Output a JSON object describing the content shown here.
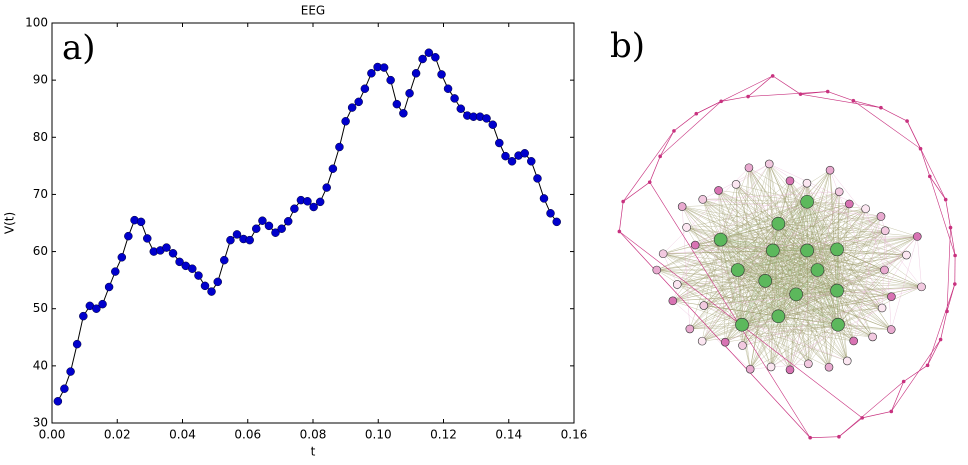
{
  "chart_data": {
    "type": "line",
    "title": "EEG",
    "xlabel": "t",
    "ylabel": "V(t)",
    "panel_labels": [
      "a)",
      "b)"
    ],
    "xlim": [
      0,
      0.16
    ],
    "ylim": [
      30,
      100
    ],
    "xticks": [
      {
        "value": 0,
        "label": "0.00"
      },
      {
        "value": 0.02,
        "label": "0.02"
      },
      {
        "value": 0.04,
        "label": "0.04"
      },
      {
        "value": 0.06,
        "label": "0.06"
      },
      {
        "value": 0.08,
        "label": "0.08"
      },
      {
        "value": 0.1,
        "label": "0.10"
      },
      {
        "value": 0.12,
        "label": "0.12"
      },
      {
        "value": 0.14,
        "label": "0.14"
      },
      {
        "value": 0.16,
        "label": "0.16"
      }
    ],
    "yticks": [
      30,
      40,
      50,
      60,
      70,
      80,
      90,
      100
    ],
    "x": [
      0.0018,
      0.0038,
      0.0057,
      0.0077,
      0.0096,
      0.0116,
      0.0136,
      0.0155,
      0.0175,
      0.0194,
      0.0214,
      0.0234,
      0.0253,
      0.0273,
      0.0292,
      0.0312,
      0.0332,
      0.0351,
      0.0371,
      0.0391,
      0.041,
      0.043,
      0.0449,
      0.0469,
      0.0489,
      0.0508,
      0.0528,
      0.0547,
      0.0567,
      0.0587,
      0.0606,
      0.0626,
      0.0645,
      0.0665,
      0.0685,
      0.0704,
      0.0724,
      0.0743,
      0.0763,
      0.0783,
      0.0802,
      0.0822,
      0.0842,
      0.0861,
      0.0881,
      0.09,
      0.092,
      0.094,
      0.0959,
      0.0979,
      0.0998,
      0.1018,
      0.1038,
      0.1057,
      0.1077,
      0.1096,
      0.1116,
      0.1136,
      0.1155,
      0.1175,
      0.1194,
      0.1214,
      0.1234,
      0.1253,
      0.1273,
      0.1292,
      0.1312,
      0.1332,
      0.1351,
      0.1371,
      0.139,
      0.141,
      0.143,
      0.1449,
      0.1469,
      0.1488,
      0.1508,
      0.1528,
      0.1547
    ],
    "series": [
      {
        "name": "V(t)",
        "color": "#0000cc",
        "values": [
          33.8,
          36,
          39,
          43.8,
          48.7,
          50.5,
          50,
          50.8,
          53.8,
          56.5,
          59,
          62.7,
          65.5,
          65.2,
          62.3,
          60,
          60.2,
          60.7,
          59.7,
          58.2,
          57.5,
          57,
          55.8,
          54,
          53,
          54.7,
          58.5,
          62,
          63,
          62.2,
          62,
          64,
          65.4,
          64.5,
          63.3,
          64,
          65.3,
          67.5,
          69,
          68.8,
          67.8,
          68.7,
          71.2,
          74.5,
          78.3,
          82.8,
          85.2,
          86.2,
          88.5,
          91.2,
          92.3,
          92.2,
          90,
          85.8,
          84.2,
          87.7,
          91.2,
          93.7,
          94.8,
          94,
          91,
          88.5,
          86.8,
          85,
          83.8,
          83.6,
          83.6,
          83.3,
          82.2,
          79,
          76.7,
          75.8,
          76.8,
          77.2,
          75.8,
          72.8,
          69.3,
          66.7,
          65.2
        ]
      }
    ]
  }
}
